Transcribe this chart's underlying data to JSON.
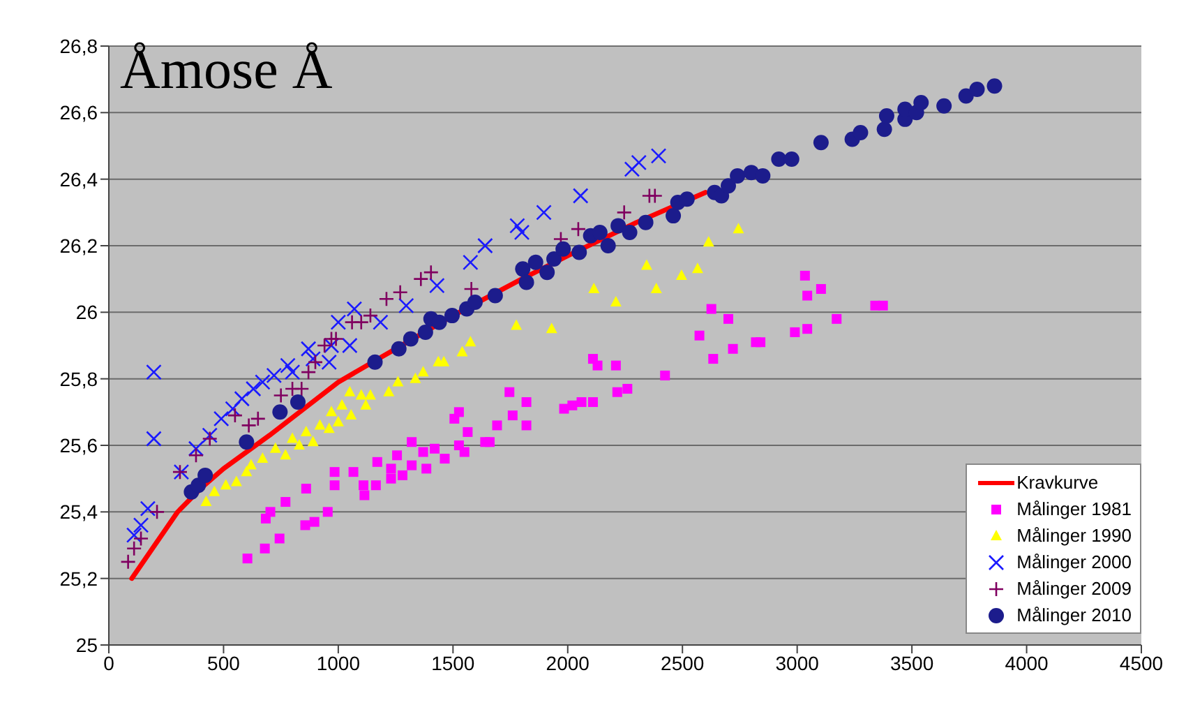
{
  "chart_data": {
    "type": "scatter",
    "title": "Åmose Å",
    "xlim": [
      0,
      4500
    ],
    "xticks": [
      0,
      500,
      1000,
      1500,
      2000,
      2500,
      3000,
      3500,
      4000,
      4500
    ],
    "ylim": [
      25,
      26.8
    ],
    "yticks": [
      25,
      {
        "value": 25.2,
        "label": "25,2"
      },
      {
        "value": 25.4,
        "label": "25,4"
      },
      {
        "value": 25.6,
        "label": "25,6"
      },
      {
        "value": 25.8,
        "label": "25,8"
      },
      26,
      {
        "value": 26.2,
        "label": "26,2"
      },
      {
        "value": 26.4,
        "label": "26,4"
      },
      {
        "value": 26.6,
        "label": "26,6"
      },
      {
        "value": 26.8,
        "label": "26,8"
      }
    ],
    "grid": "y",
    "legend": "bottom right",
    "series": [
      {
        "name": "Kravkurve",
        "type": "line",
        "marker": "none",
        "line_style": "solid",
        "color": "#ff0000",
        "x": [
          100,
          200,
          300,
          400,
          500,
          700,
          1000,
          1200,
          1500,
          1800,
          2000,
          2300,
          2600
        ],
        "values": [
          25.2,
          25.3,
          25.4,
          25.47,
          25.53,
          25.63,
          25.79,
          25.87,
          25.99,
          26.1,
          26.17,
          26.27,
          26.36
        ]
      },
      {
        "name": "Målinger 1981",
        "marker": "square",
        "color": "#ff00ff",
        "x": [
          604,
          680,
          684,
          704,
          744,
          770,
          856,
          860,
          896,
          954,
          984,
          984,
          1066,
          1110,
          1114,
          1164,
          1170,
          1230,
          1230,
          1256,
          1280,
          1320,
          1320,
          1370,
          1384,
          1420,
          1464,
          1506,
          1526,
          1526,
          1550,
          1564,
          1640,
          1660,
          1692,
          1746,
          1760,
          1820,
          1820,
          1984,
          2020,
          2060,
          2110,
          2110,
          2130,
          2210,
          2216,
          2260,
          2424,
          2574,
          2626,
          2634,
          2700,
          2720,
          2820,
          2840,
          2990,
          3034,
          3044,
          3044,
          3104,
          3172,
          3340,
          3374
        ],
        "values": [
          25.26,
          25.29,
          25.38,
          25.4,
          25.32,
          25.43,
          25.36,
          25.47,
          25.37,
          25.4,
          25.52,
          25.48,
          25.52,
          25.48,
          25.45,
          25.48,
          25.55,
          25.53,
          25.5,
          25.57,
          25.51,
          25.61,
          25.54,
          25.58,
          25.53,
          25.59,
          25.56,
          25.68,
          25.7,
          25.6,
          25.58,
          25.64,
          25.61,
          25.61,
          25.66,
          25.76,
          25.69,
          25.73,
          25.66,
          25.71,
          25.72,
          25.73,
          25.73,
          25.86,
          25.84,
          25.84,
          25.76,
          25.77,
          25.81,
          25.93,
          26.01,
          25.86,
          25.98,
          25.89,
          25.91,
          25.91,
          25.94,
          26.11,
          26.05,
          25.95,
          26.07,
          25.98,
          26.02,
          26.02
        ]
      },
      {
        "name": "Målinger 1990",
        "marker": "triangle",
        "color": "#ffff00",
        "x": [
          424,
          460,
          510,
          556,
          600,
          620,
          670,
          726,
          770,
          800,
          830,
          860,
          890,
          920,
          960,
          970,
          1000,
          1016,
          1056,
          1050,
          1100,
          1120,
          1140,
          1220,
          1260,
          1336,
          1370,
          1436,
          1460,
          1540,
          1576,
          1776,
          1930,
          2114,
          2210,
          2344,
          2386,
          2496,
          2566,
          2614,
          2744
        ],
        "values": [
          25.43,
          25.46,
          25.48,
          25.49,
          25.52,
          25.54,
          25.56,
          25.59,
          25.57,
          25.62,
          25.6,
          25.64,
          25.61,
          25.66,
          25.65,
          25.7,
          25.67,
          25.72,
          25.69,
          25.76,
          25.75,
          25.72,
          25.75,
          25.76,
          25.79,
          25.8,
          25.82,
          25.85,
          25.85,
          25.88,
          25.91,
          25.96,
          25.95,
          26.07,
          26.03,
          26.14,
          26.07,
          26.11,
          26.13,
          26.21,
          26.25
        ]
      },
      {
        "name": "Målinger 2000",
        "marker": "x",
        "color": "#1a1aff",
        "x": [
          110,
          140,
          170,
          196,
          196,
          316,
          380,
          440,
          490,
          540,
          580,
          630,
          670,
          720,
          780,
          800,
          870,
          890,
          960,
          970,
          1000,
          1050,
          1070,
          1184,
          1296,
          1430,
          1576,
          1640,
          1780,
          1800,
          1896,
          2056,
          2280,
          2310,
          2396
        ],
        "values": [
          25.33,
          25.36,
          25.41,
          25.82,
          25.62,
          25.52,
          25.59,
          25.63,
          25.68,
          25.71,
          25.74,
          25.77,
          25.79,
          25.81,
          25.84,
          25.82,
          25.89,
          25.86,
          25.85,
          25.9,
          25.97,
          25.9,
          26.01,
          25.97,
          26.02,
          26.08,
          26.15,
          26.2,
          26.26,
          26.24,
          26.3,
          26.35,
          26.43,
          26.45,
          26.47
        ]
      },
      {
        "name": "Målinger 2009",
        "marker": "cross",
        "color": "#800060",
        "x": [
          84,
          110,
          140,
          210,
          310,
          380,
          440,
          550,
          610,
          650,
          750,
          800,
          840,
          870,
          900,
          940,
          970,
          990,
          1060,
          1100,
          1140,
          1210,
          1270,
          1360,
          1404,
          1580,
          1970,
          2046,
          2246,
          2356,
          2380
        ],
        "values": [
          25.25,
          25.29,
          25.32,
          25.4,
          25.52,
          25.57,
          25.62,
          25.69,
          25.66,
          25.68,
          25.75,
          25.77,
          25.77,
          25.82,
          25.85,
          25.9,
          25.92,
          25.92,
          25.97,
          25.97,
          25.99,
          26.04,
          26.06,
          26.1,
          26.12,
          26.07,
          26.22,
          26.25,
          26.3,
          26.35,
          26.35
        ]
      },
      {
        "name": "Målinger 2010",
        "marker": "circle",
        "color": "#1c1c8c",
        "x": [
          360,
          390,
          420,
          600,
          746,
          824,
          1160,
          1264,
          1316,
          1380,
          1404,
          1440,
          1496,
          1560,
          1596,
          1684,
          1804,
          1820,
          1860,
          1910,
          1940,
          1980,
          2050,
          2100,
          2140,
          2176,
          2220,
          2270,
          2340,
          2460,
          2480,
          2520,
          2640,
          2670,
          2700,
          2740,
          2800,
          2850,
          2920,
          2976,
          3104,
          3240,
          3276,
          3380,
          3390,
          3470,
          3470,
          3520,
          3540,
          3640,
          3736,
          3784,
          3860
        ],
        "values": [
          25.46,
          25.48,
          25.51,
          25.61,
          25.7,
          25.73,
          25.85,
          25.89,
          25.92,
          25.94,
          25.98,
          25.97,
          25.99,
          26.01,
          26.03,
          26.05,
          26.13,
          26.09,
          26.15,
          26.12,
          26.16,
          26.19,
          26.18,
          26.23,
          26.24,
          26.2,
          26.26,
          26.24,
          26.27,
          26.29,
          26.33,
          26.34,
          26.36,
          26.35,
          26.38,
          26.41,
          26.42,
          26.41,
          26.46,
          26.46,
          26.51,
          26.52,
          26.54,
          26.55,
          26.59,
          26.58,
          26.61,
          26.6,
          26.63,
          26.62,
          26.65,
          26.67,
          26.68
        ]
      }
    ]
  }
}
